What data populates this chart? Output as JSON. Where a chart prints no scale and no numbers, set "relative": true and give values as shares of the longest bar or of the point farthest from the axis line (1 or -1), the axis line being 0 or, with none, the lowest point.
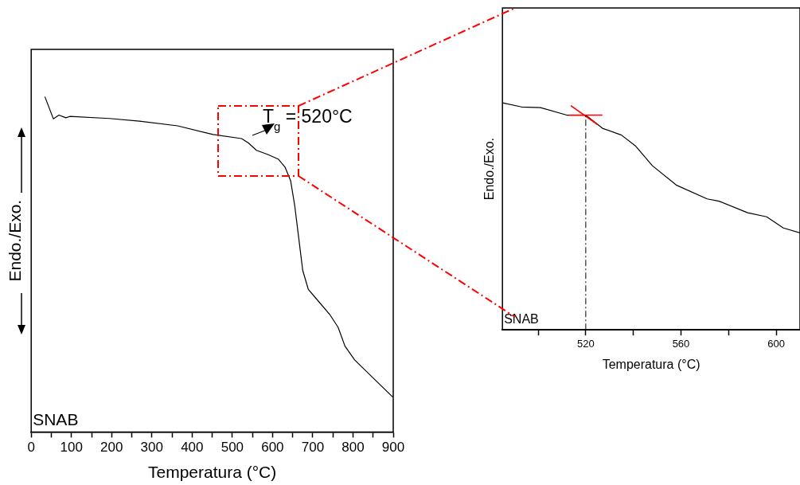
{
  "chart_data": [
    {
      "type": "line",
      "relative": true,
      "xlabel": "Temperatura (°C)",
      "ylabel": "Endo./Exo.",
      "xlim": [
        0,
        900
      ],
      "xticks": [
        0,
        {
          "value": 50,
          "label": null
        },
        100,
        {
          "value": 150,
          "label": null
        },
        200,
        {
          "value": 250,
          "label": null
        },
        300,
        {
          "value": 350,
          "label": null
        },
        400,
        {
          "value": 450,
          "label": null
        },
        500,
        {
          "value": 550,
          "label": null
        },
        600,
        {
          "value": 650,
          "label": null
        },
        700,
        {
          "value": 750,
          "label": null
        },
        800,
        {
          "value": 850,
          "label": null
        },
        900
      ],
      "series": [
        {
          "color": "#000000",
          "x": [
            34,
            55,
            69,
            86,
            96,
            194,
            269,
            364,
            452,
            523,
            540,
            560,
            587,
            614,
            631,
            645,
            655,
            665,
            675,
            689,
            709,
            743,
            763,
            780,
            804,
            845,
            899
          ],
          "values": [
            1.0,
            0.934,
            0.945,
            0.937,
            0.941,
            0.935,
            0.927,
            0.913,
            0.887,
            0.875,
            0.862,
            0.84,
            0.828,
            0.814,
            0.79,
            0.749,
            0.676,
            0.579,
            0.482,
            0.425,
            0.397,
            0.349,
            0.312,
            0.256,
            0.215,
            0.167,
            0.104
          ]
        }
      ],
      "annotations": [
        "SNAB",
        {
          "text": "T$_{g}$ = 520°C",
          "x": 520,
          "y": 0.875
        }
      ],
      "grid": false,
      "legend": false,
      "marker": "none"
    },
    {
      "type": "line",
      "relative": true,
      "xlabel": "Temperatura (°C)",
      "ylabel": "Endo./Exo.",
      "xlim": [
        485,
        610
      ],
      "xticks": [
        {
          "value": 500,
          "label": null
        },
        520,
        {
          "value": 540,
          "label": null
        },
        560,
        {
          "value": 580,
          "label": null
        },
        600
      ],
      "series": [
        {
          "color": "#000000",
          "x": [
            485,
            493,
            501,
            512,
            520,
            527,
            535,
            541,
            548,
            558,
            571,
            576,
            588,
            596,
            603,
            610
          ],
          "values": [
            1.0,
            0.982,
            0.979,
            0.946,
            0.946,
            0.888,
            0.858,
            0.809,
            0.723,
            0.638,
            0.577,
            0.567,
            0.516,
            0.498,
            0.449,
            0.427
          ]
        },
        {
          "color": "#ff0000",
          "x": [
            513,
            527
          ],
          "values": [
            0.946,
            0.946
          ]
        },
        {
          "color": "#ff0000",
          "x": [
            513.7,
            525
          ],
          "values": [
            0.988,
            0.904
          ]
        }
      ],
      "ref_lines": [
        {
          "axis": "x",
          "value": 520,
          "color": "#000000",
          "line_style": "dashed"
        }
      ],
      "annotations": [
        "SNAB"
      ],
      "grid": false,
      "legend": false,
      "marker": "none"
    }
  ]
}
